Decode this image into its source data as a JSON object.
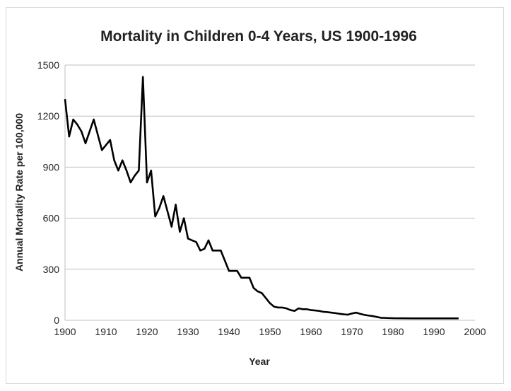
{
  "chart_data": {
    "type": "line",
    "title": "Mortality in Children 0-4 Years, US 1900-1996",
    "xlabel": "Year",
    "ylabel": "Annual Mortality Rate per 100,000",
    "xlim": [
      1900,
      2000
    ],
    "ylim": [
      0,
      1500
    ],
    "x_ticks": [
      1900,
      1910,
      1920,
      1930,
      1940,
      1950,
      1960,
      1970,
      1980,
      1990,
      2000
    ],
    "y_ticks": [
      0,
      300,
      600,
      900,
      1200,
      1500
    ],
    "grid": "horizontal",
    "series": [
      {
        "color": "#000000",
        "x": [
          1900,
          1901,
          1902,
          1903,
          1904,
          1905,
          1906,
          1907,
          1908,
          1909,
          1910,
          1911,
          1912,
          1913,
          1914,
          1915,
          1916,
          1917,
          1918,
          1919,
          1920,
          1921,
          1922,
          1923,
          1924,
          1925,
          1926,
          1927,
          1928,
          1929,
          1930,
          1931,
          1932,
          1933,
          1934,
          1935,
          1936,
          1937,
          1938,
          1939,
          1940,
          1941,
          1942,
          1943,
          1944,
          1945,
          1946,
          1947,
          1948,
          1949,
          1950,
          1951,
          1952,
          1953,
          1954,
          1955,
          1956,
          1957,
          1958,
          1959,
          1960,
          1961,
          1962,
          1963,
          1964,
          1965,
          1966,
          1967,
          1968,
          1969,
          1970,
          1971,
          1972,
          1973,
          1974,
          1975,
          1976,
          1977,
          1978,
          1979,
          1980,
          1985,
          1990,
          1996
        ],
        "y": [
          1300,
          1080,
          1180,
          1150,
          1110,
          1040,
          1110,
          1180,
          1090,
          1000,
          1030,
          1060,
          940,
          880,
          940,
          880,
          810,
          850,
          880,
          1430,
          810,
          880,
          610,
          660,
          730,
          640,
          550,
          680,
          520,
          600,
          480,
          470,
          460,
          410,
          420,
          470,
          410,
          410,
          410,
          350,
          290,
          290,
          290,
          250,
          250,
          250,
          190,
          170,
          160,
          130,
          100,
          80,
          75,
          75,
          70,
          60,
          55,
          70,
          65,
          65,
          60,
          58,
          55,
          50,
          48,
          45,
          42,
          38,
          35,
          33,
          40,
          45,
          38,
          32,
          28,
          25,
          20,
          15,
          14,
          13,
          12,
          11,
          11,
          11
        ]
      }
    ]
  }
}
